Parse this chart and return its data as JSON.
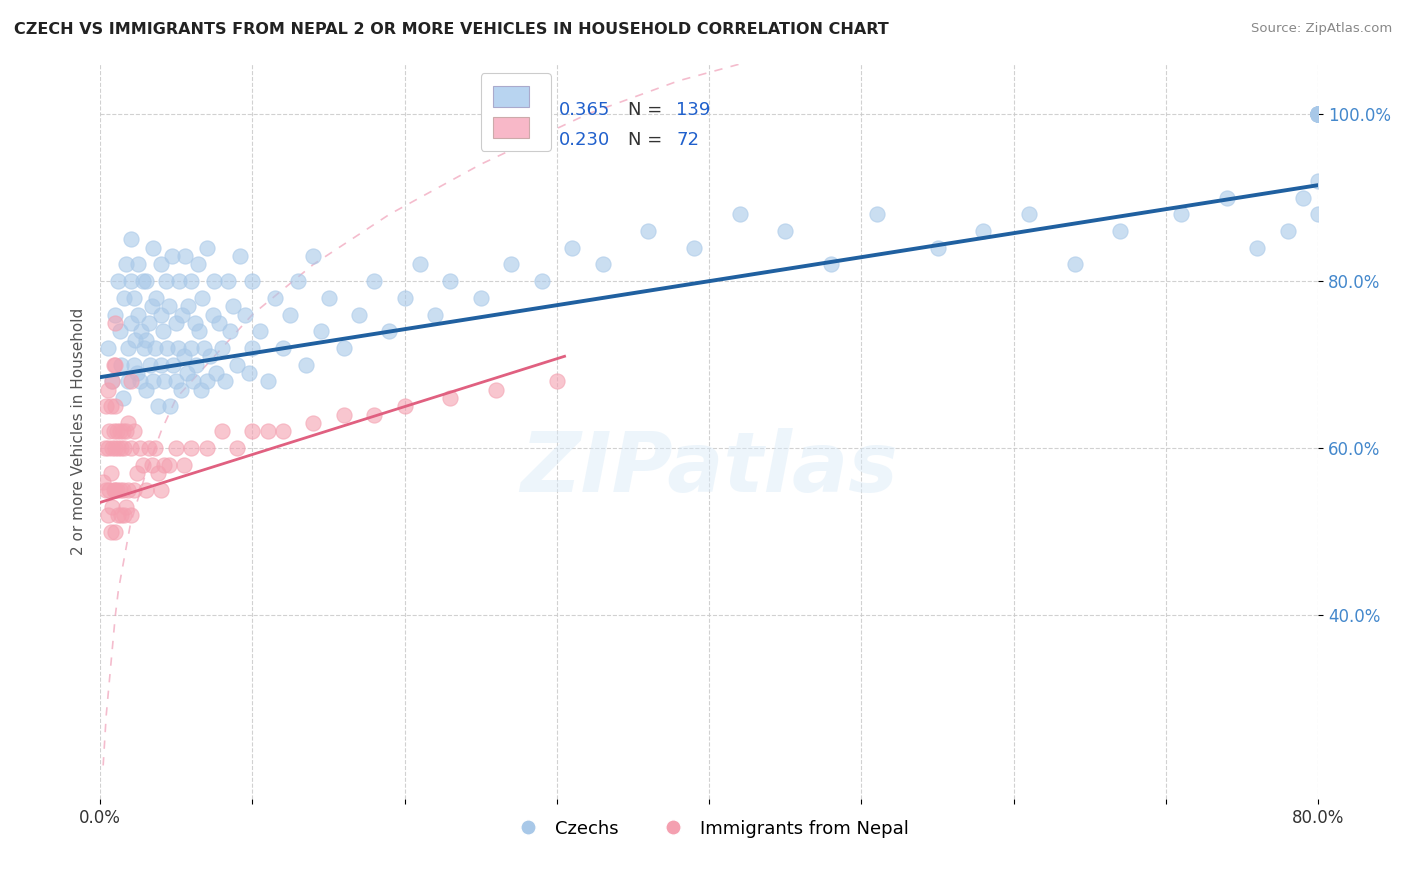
{
  "title": "CZECH VS IMMIGRANTS FROM NEPAL 2 OR MORE VEHICLES IN HOUSEHOLD CORRELATION CHART",
  "source": "Source: ZipAtlas.com",
  "ylabel": "2 or more Vehicles in Household",
  "watermark": "ZIPatlas",
  "legend_blue_R": "0.365",
  "legend_blue_N": "139",
  "legend_pink_R": "0.230",
  "legend_pink_N": "72",
  "blue_label": "Czechs",
  "pink_label": "Immigrants from Nepal",
  "blue_color": "#a8c8e8",
  "pink_color": "#f4a0b0",
  "blue_line_color": "#2060a0",
  "pink_line_color": "#e06080",
  "pink_dash_color": "#f0a0b8",
  "x_min": 0.0,
  "x_max": 0.8,
  "y_min": 0.18,
  "y_max": 1.06,
  "x_ticks": [
    0.0,
    0.1,
    0.2,
    0.3,
    0.4,
    0.5,
    0.6,
    0.7,
    0.8
  ],
  "x_tick_labels": [
    "0.0%",
    "",
    "",
    "",
    "",
    "",
    "",
    "",
    "80.0%"
  ],
  "y_ticks": [
    0.4,
    0.6,
    0.8,
    1.0
  ],
  "y_tick_labels": [
    "40.0%",
    "60.0%",
    "80.0%",
    "100.0%"
  ],
  "blue_scatter_x": [
    0.005,
    0.008,
    0.01,
    0.012,
    0.013,
    0.014,
    0.015,
    0.016,
    0.017,
    0.018,
    0.018,
    0.02,
    0.02,
    0.02,
    0.022,
    0.022,
    0.023,
    0.024,
    0.025,
    0.025,
    0.026,
    0.027,
    0.028,
    0.029,
    0.03,
    0.03,
    0.03,
    0.032,
    0.033,
    0.034,
    0.035,
    0.035,
    0.036,
    0.037,
    0.038,
    0.04,
    0.04,
    0.04,
    0.041,
    0.042,
    0.043,
    0.044,
    0.045,
    0.046,
    0.047,
    0.048,
    0.05,
    0.05,
    0.051,
    0.052,
    0.053,
    0.054,
    0.055,
    0.056,
    0.057,
    0.058,
    0.06,
    0.06,
    0.061,
    0.062,
    0.063,
    0.064,
    0.065,
    0.066,
    0.067,
    0.068,
    0.07,
    0.07,
    0.072,
    0.074,
    0.075,
    0.076,
    0.078,
    0.08,
    0.082,
    0.084,
    0.085,
    0.087,
    0.09,
    0.092,
    0.095,
    0.098,
    0.1,
    0.1,
    0.105,
    0.11,
    0.115,
    0.12,
    0.125,
    0.13,
    0.135,
    0.14,
    0.145,
    0.15,
    0.16,
    0.17,
    0.18,
    0.19,
    0.2,
    0.21,
    0.22,
    0.23,
    0.25,
    0.27,
    0.29,
    0.31,
    0.33,
    0.36,
    0.39,
    0.42,
    0.45,
    0.48,
    0.51,
    0.55,
    0.58,
    0.61,
    0.64,
    0.67,
    0.71,
    0.74,
    0.76,
    0.78,
    0.79,
    0.8,
    0.8,
    0.8,
    0.8,
    0.8,
    0.8,
    0.8,
    0.8,
    0.8,
    0.8,
    0.8,
    0.8,
    0.8,
    0.8,
    0.8,
    0.8
  ],
  "blue_scatter_y": [
    0.72,
    0.68,
    0.76,
    0.8,
    0.74,
    0.7,
    0.66,
    0.78,
    0.82,
    0.72,
    0.68,
    0.75,
    0.8,
    0.85,
    0.7,
    0.78,
    0.73,
    0.69,
    0.76,
    0.82,
    0.68,
    0.74,
    0.8,
    0.72,
    0.67,
    0.73,
    0.8,
    0.75,
    0.7,
    0.77,
    0.68,
    0.84,
    0.72,
    0.78,
    0.65,
    0.7,
    0.76,
    0.82,
    0.74,
    0.68,
    0.8,
    0.72,
    0.77,
    0.65,
    0.83,
    0.7,
    0.68,
    0.75,
    0.72,
    0.8,
    0.67,
    0.76,
    0.71,
    0.83,
    0.69,
    0.77,
    0.72,
    0.8,
    0.68,
    0.75,
    0.7,
    0.82,
    0.74,
    0.67,
    0.78,
    0.72,
    0.68,
    0.84,
    0.71,
    0.76,
    0.8,
    0.69,
    0.75,
    0.72,
    0.68,
    0.8,
    0.74,
    0.77,
    0.7,
    0.83,
    0.76,
    0.69,
    0.72,
    0.8,
    0.74,
    0.68,
    0.78,
    0.72,
    0.76,
    0.8,
    0.7,
    0.83,
    0.74,
    0.78,
    0.72,
    0.76,
    0.8,
    0.74,
    0.78,
    0.82,
    0.76,
    0.8,
    0.78,
    0.82,
    0.8,
    0.84,
    0.82,
    0.86,
    0.84,
    0.88,
    0.86,
    0.82,
    0.88,
    0.84,
    0.86,
    0.88,
    0.82,
    0.86,
    0.88,
    0.9,
    0.84,
    0.86,
    0.9,
    0.88,
    0.92,
    1.0,
    1.0,
    1.0,
    1.0,
    1.0,
    1.0,
    1.0,
    1.0,
    1.0,
    1.0,
    1.0,
    1.0,
    1.0,
    1.0
  ],
  "pink_scatter_x": [
    0.002,
    0.003,
    0.004,
    0.004,
    0.005,
    0.005,
    0.005,
    0.006,
    0.006,
    0.007,
    0.007,
    0.007,
    0.008,
    0.008,
    0.008,
    0.009,
    0.009,
    0.009,
    0.01,
    0.01,
    0.01,
    0.01,
    0.01,
    0.01,
    0.011,
    0.011,
    0.012,
    0.012,
    0.013,
    0.013,
    0.014,
    0.014,
    0.015,
    0.015,
    0.016,
    0.016,
    0.017,
    0.017,
    0.018,
    0.018,
    0.02,
    0.02,
    0.02,
    0.022,
    0.022,
    0.024,
    0.026,
    0.028,
    0.03,
    0.032,
    0.034,
    0.036,
    0.038,
    0.04,
    0.042,
    0.045,
    0.05,
    0.055,
    0.06,
    0.07,
    0.08,
    0.09,
    0.1,
    0.11,
    0.12,
    0.14,
    0.16,
    0.18,
    0.2,
    0.23,
    0.26,
    0.3
  ],
  "pink_scatter_y": [
    0.56,
    0.6,
    0.55,
    0.65,
    0.52,
    0.6,
    0.67,
    0.55,
    0.62,
    0.5,
    0.57,
    0.65,
    0.53,
    0.6,
    0.68,
    0.55,
    0.62,
    0.7,
    0.5,
    0.55,
    0.6,
    0.65,
    0.7,
    0.75,
    0.55,
    0.62,
    0.52,
    0.6,
    0.55,
    0.62,
    0.52,
    0.6,
    0.55,
    0.62,
    0.52,
    0.6,
    0.53,
    0.62,
    0.55,
    0.63,
    0.52,
    0.6,
    0.68,
    0.55,
    0.62,
    0.57,
    0.6,
    0.58,
    0.55,
    0.6,
    0.58,
    0.6,
    0.57,
    0.55,
    0.58,
    0.58,
    0.6,
    0.58,
    0.6,
    0.6,
    0.62,
    0.6,
    0.62,
    0.62,
    0.62,
    0.63,
    0.64,
    0.64,
    0.65,
    0.66,
    0.67,
    0.68
  ],
  "pink_extra_x": [
    0.002,
    0.003,
    0.004,
    0.005,
    0.006,
    0.007,
    0.008,
    0.009,
    0.01,
    0.012,
    0.014,
    0.016,
    0.018,
    0.02,
    0.025,
    0.03,
    0.04,
    0.05,
    0.07,
    0.1,
    0.14,
    0.19,
    0.25,
    0.32,
    0.38,
    0.44,
    0.5,
    0.56,
    0.62,
    0.68,
    0.74,
    0.8
  ],
  "pink_extra_y": [
    0.22,
    0.25,
    0.28,
    0.3,
    0.32,
    0.34,
    0.36,
    0.38,
    0.4,
    0.43,
    0.45,
    0.47,
    0.49,
    0.51,
    0.54,
    0.57,
    0.62,
    0.66,
    0.7,
    0.76,
    0.82,
    0.88,
    0.94,
    1.0,
    1.04,
    1.07,
    1.1,
    1.12,
    1.14,
    1.16,
    1.17,
    1.18
  ],
  "blue_trend_x": [
    0.0,
    0.8
  ],
  "blue_trend_y": [
    0.685,
    0.915
  ],
  "pink_trend_x": [
    0.0,
    0.305
  ],
  "pink_trend_y": [
    0.535,
    0.71
  ]
}
